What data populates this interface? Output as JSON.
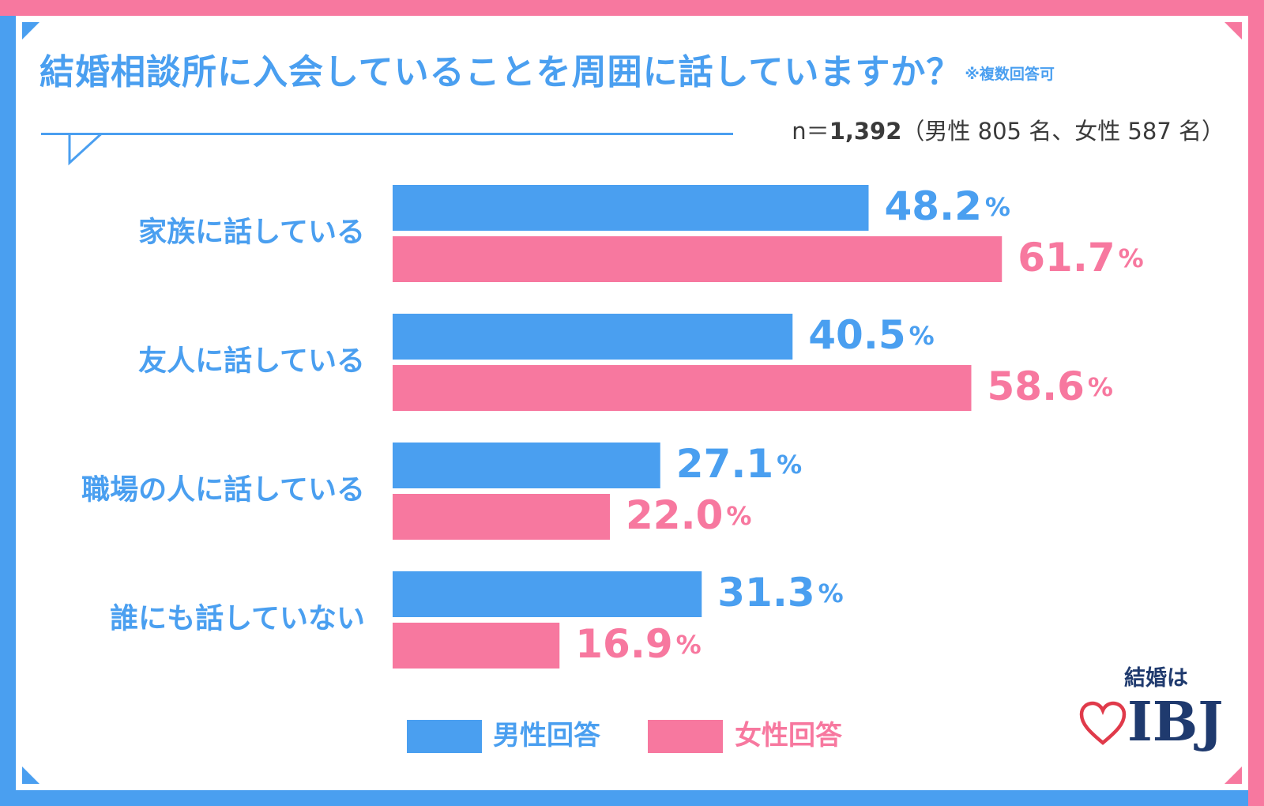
{
  "title": "結婚相談所に入会していることを周囲に話していますか？",
  "title_note": "※複数回答可",
  "sample": {
    "prefix": "n＝",
    "total": "1,392",
    "detail": "（男性 805 名、女性 587 名）"
  },
  "legend": {
    "male": "男性回答",
    "female": "女性回答"
  },
  "logo": {
    "sub": "結婚は",
    "brand": "IBJ"
  },
  "colors": {
    "male": "#4a9ff0",
    "female": "#f7789f"
  },
  "chart_data": {
    "type": "bar",
    "orientation": "horizontal",
    "categories": [
      "家族に話している",
      "友人に話している",
      "職場の人に話している",
      "誰にも話していない"
    ],
    "series": [
      {
        "name": "男性回答",
        "values": [
          48.2,
          40.5,
          27.1,
          31.3
        ],
        "labels": [
          "48.2",
          "40.5",
          "27.1",
          "31.3"
        ]
      },
      {
        "name": "女性回答",
        "values": [
          61.7,
          58.6,
          22.0,
          16.9
        ],
        "labels": [
          "61.7",
          "58.6",
          "22.0",
          "16.9"
        ]
      }
    ],
    "unit": "%",
    "legend": "bottom",
    "grid": false
  }
}
